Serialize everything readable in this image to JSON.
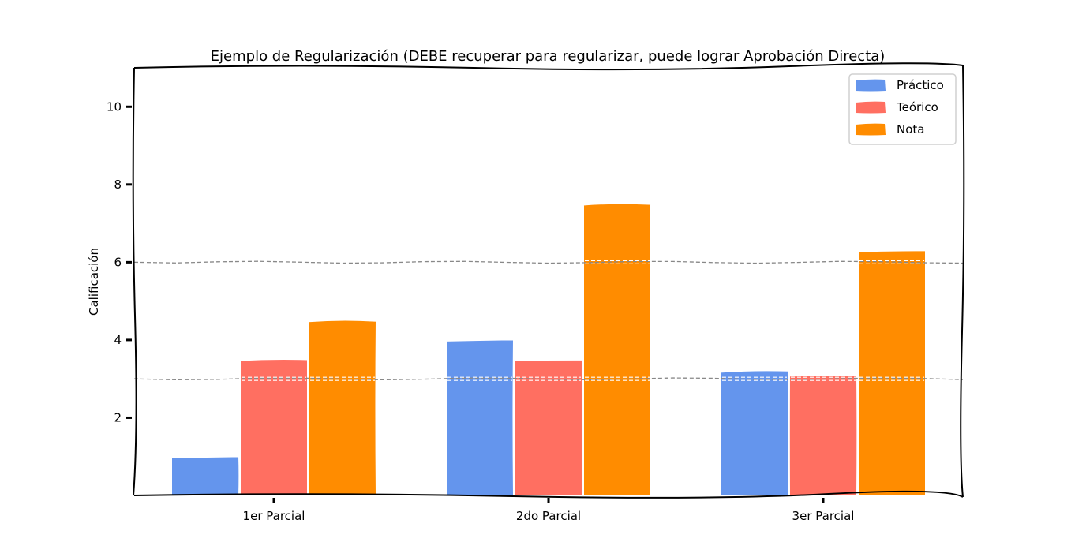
{
  "chart_data": {
    "type": "bar",
    "title": "Ejemplo de Regularización (DEBE recuperar para regularizar, puede lograr Aprobación Directa)",
    "xlabel": "",
    "ylabel": "Calificación",
    "categories": [
      "1er Parcial",
      "2do Parcial",
      "3er Parcial"
    ],
    "series": [
      {
        "name": "Práctico",
        "color": "#6495ED",
        "values": [
          1.0,
          4.0,
          3.2
        ]
      },
      {
        "name": "Teórico",
        "color": "#FF6F61",
        "values": [
          3.5,
          3.5,
          3.1
        ]
      },
      {
        "name": "Nota",
        "color": "#FF8C00",
        "values": [
          4.5,
          7.5,
          6.3
        ]
      }
    ],
    "ylim": [
      0,
      11
    ],
    "yticks": [
      2,
      4,
      6,
      8,
      10
    ],
    "reference_lines": [
      3,
      6
    ],
    "reference_line_color": "#888888",
    "legend_position": "top-right",
    "grid": false
  }
}
